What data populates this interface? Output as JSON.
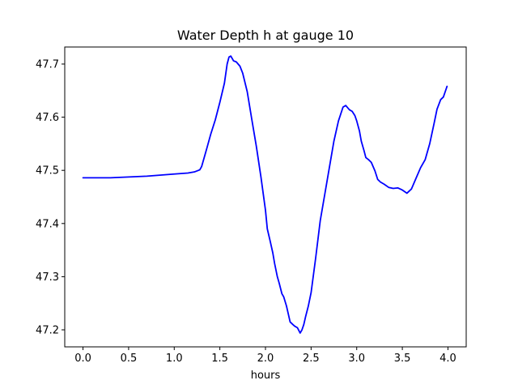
{
  "chart_data": {
    "type": "line",
    "title": "Water Depth h at gauge 10",
    "xlabel": "hours",
    "ylabel": "",
    "xlim": [
      -0.2,
      4.2
    ],
    "ylim": [
      47.168,
      47.732
    ],
    "xticks": [
      0.0,
      0.5,
      1.0,
      1.5,
      2.0,
      2.5,
      3.0,
      3.5,
      4.0
    ],
    "xtick_labels": [
      "0.0",
      "0.5",
      "1.0",
      "1.5",
      "2.0",
      "2.5",
      "3.0",
      "3.5",
      "4.0"
    ],
    "yticks": [
      47.2,
      47.3,
      47.4,
      47.5,
      47.6,
      47.7
    ],
    "ytick_labels": [
      "47.2",
      "47.3",
      "47.4",
      "47.5",
      "47.6",
      "47.7"
    ],
    "grid": false,
    "legend": "none",
    "series": [
      {
        "color": "#0000ff",
        "x": [
          0.0,
          0.3,
          0.7,
          1.0,
          1.15,
          1.22,
          1.28,
          1.3,
          1.35,
          1.4,
          1.45,
          1.5,
          1.55,
          1.58,
          1.6,
          1.62,
          1.65,
          1.68,
          1.72,
          1.75,
          1.8,
          1.85,
          1.9,
          1.95,
          2.0,
          2.02,
          2.05,
          2.08,
          2.1,
          2.13,
          2.15,
          2.18,
          2.2,
          2.23,
          2.25,
          2.27,
          2.3,
          2.32,
          2.35,
          2.38,
          2.4,
          2.42,
          2.44,
          2.47,
          2.5,
          2.55,
          2.6,
          2.65,
          2.7,
          2.75,
          2.8,
          2.85,
          2.88,
          2.92,
          2.95,
          2.98,
          3.0,
          3.03,
          3.05,
          3.08,
          3.1,
          3.13,
          3.16,
          3.2,
          3.23,
          3.26,
          3.3,
          3.35,
          3.4,
          3.45,
          3.5,
          3.55,
          3.6,
          3.65,
          3.7,
          3.75,
          3.8,
          3.85,
          3.88,
          3.92,
          3.95,
          3.97,
          3.99
        ],
        "y": [
          47.486,
          47.486,
          47.489,
          47.493,
          47.495,
          47.497,
          47.501,
          47.507,
          47.537,
          47.568,
          47.595,
          47.628,
          47.664,
          47.7,
          47.713,
          47.715,
          47.706,
          47.704,
          47.696,
          47.683,
          47.648,
          47.596,
          47.545,
          47.488,
          47.425,
          47.39,
          47.368,
          47.345,
          47.325,
          47.3,
          47.288,
          47.268,
          47.262,
          47.245,
          47.23,
          47.215,
          47.21,
          47.207,
          47.204,
          47.194,
          47.2,
          47.21,
          47.225,
          47.245,
          47.27,
          47.335,
          47.405,
          47.455,
          47.505,
          47.555,
          47.593,
          47.619,
          47.622,
          47.614,
          47.611,
          47.603,
          47.593,
          47.574,
          47.555,
          47.537,
          47.524,
          47.52,
          47.515,
          47.499,
          47.483,
          47.478,
          47.474,
          47.468,
          47.466,
          47.467,
          47.463,
          47.457,
          47.465,
          47.485,
          47.505,
          47.52,
          47.55,
          47.59,
          47.615,
          47.633,
          47.638,
          47.648,
          47.658
        ]
      }
    ]
  }
}
